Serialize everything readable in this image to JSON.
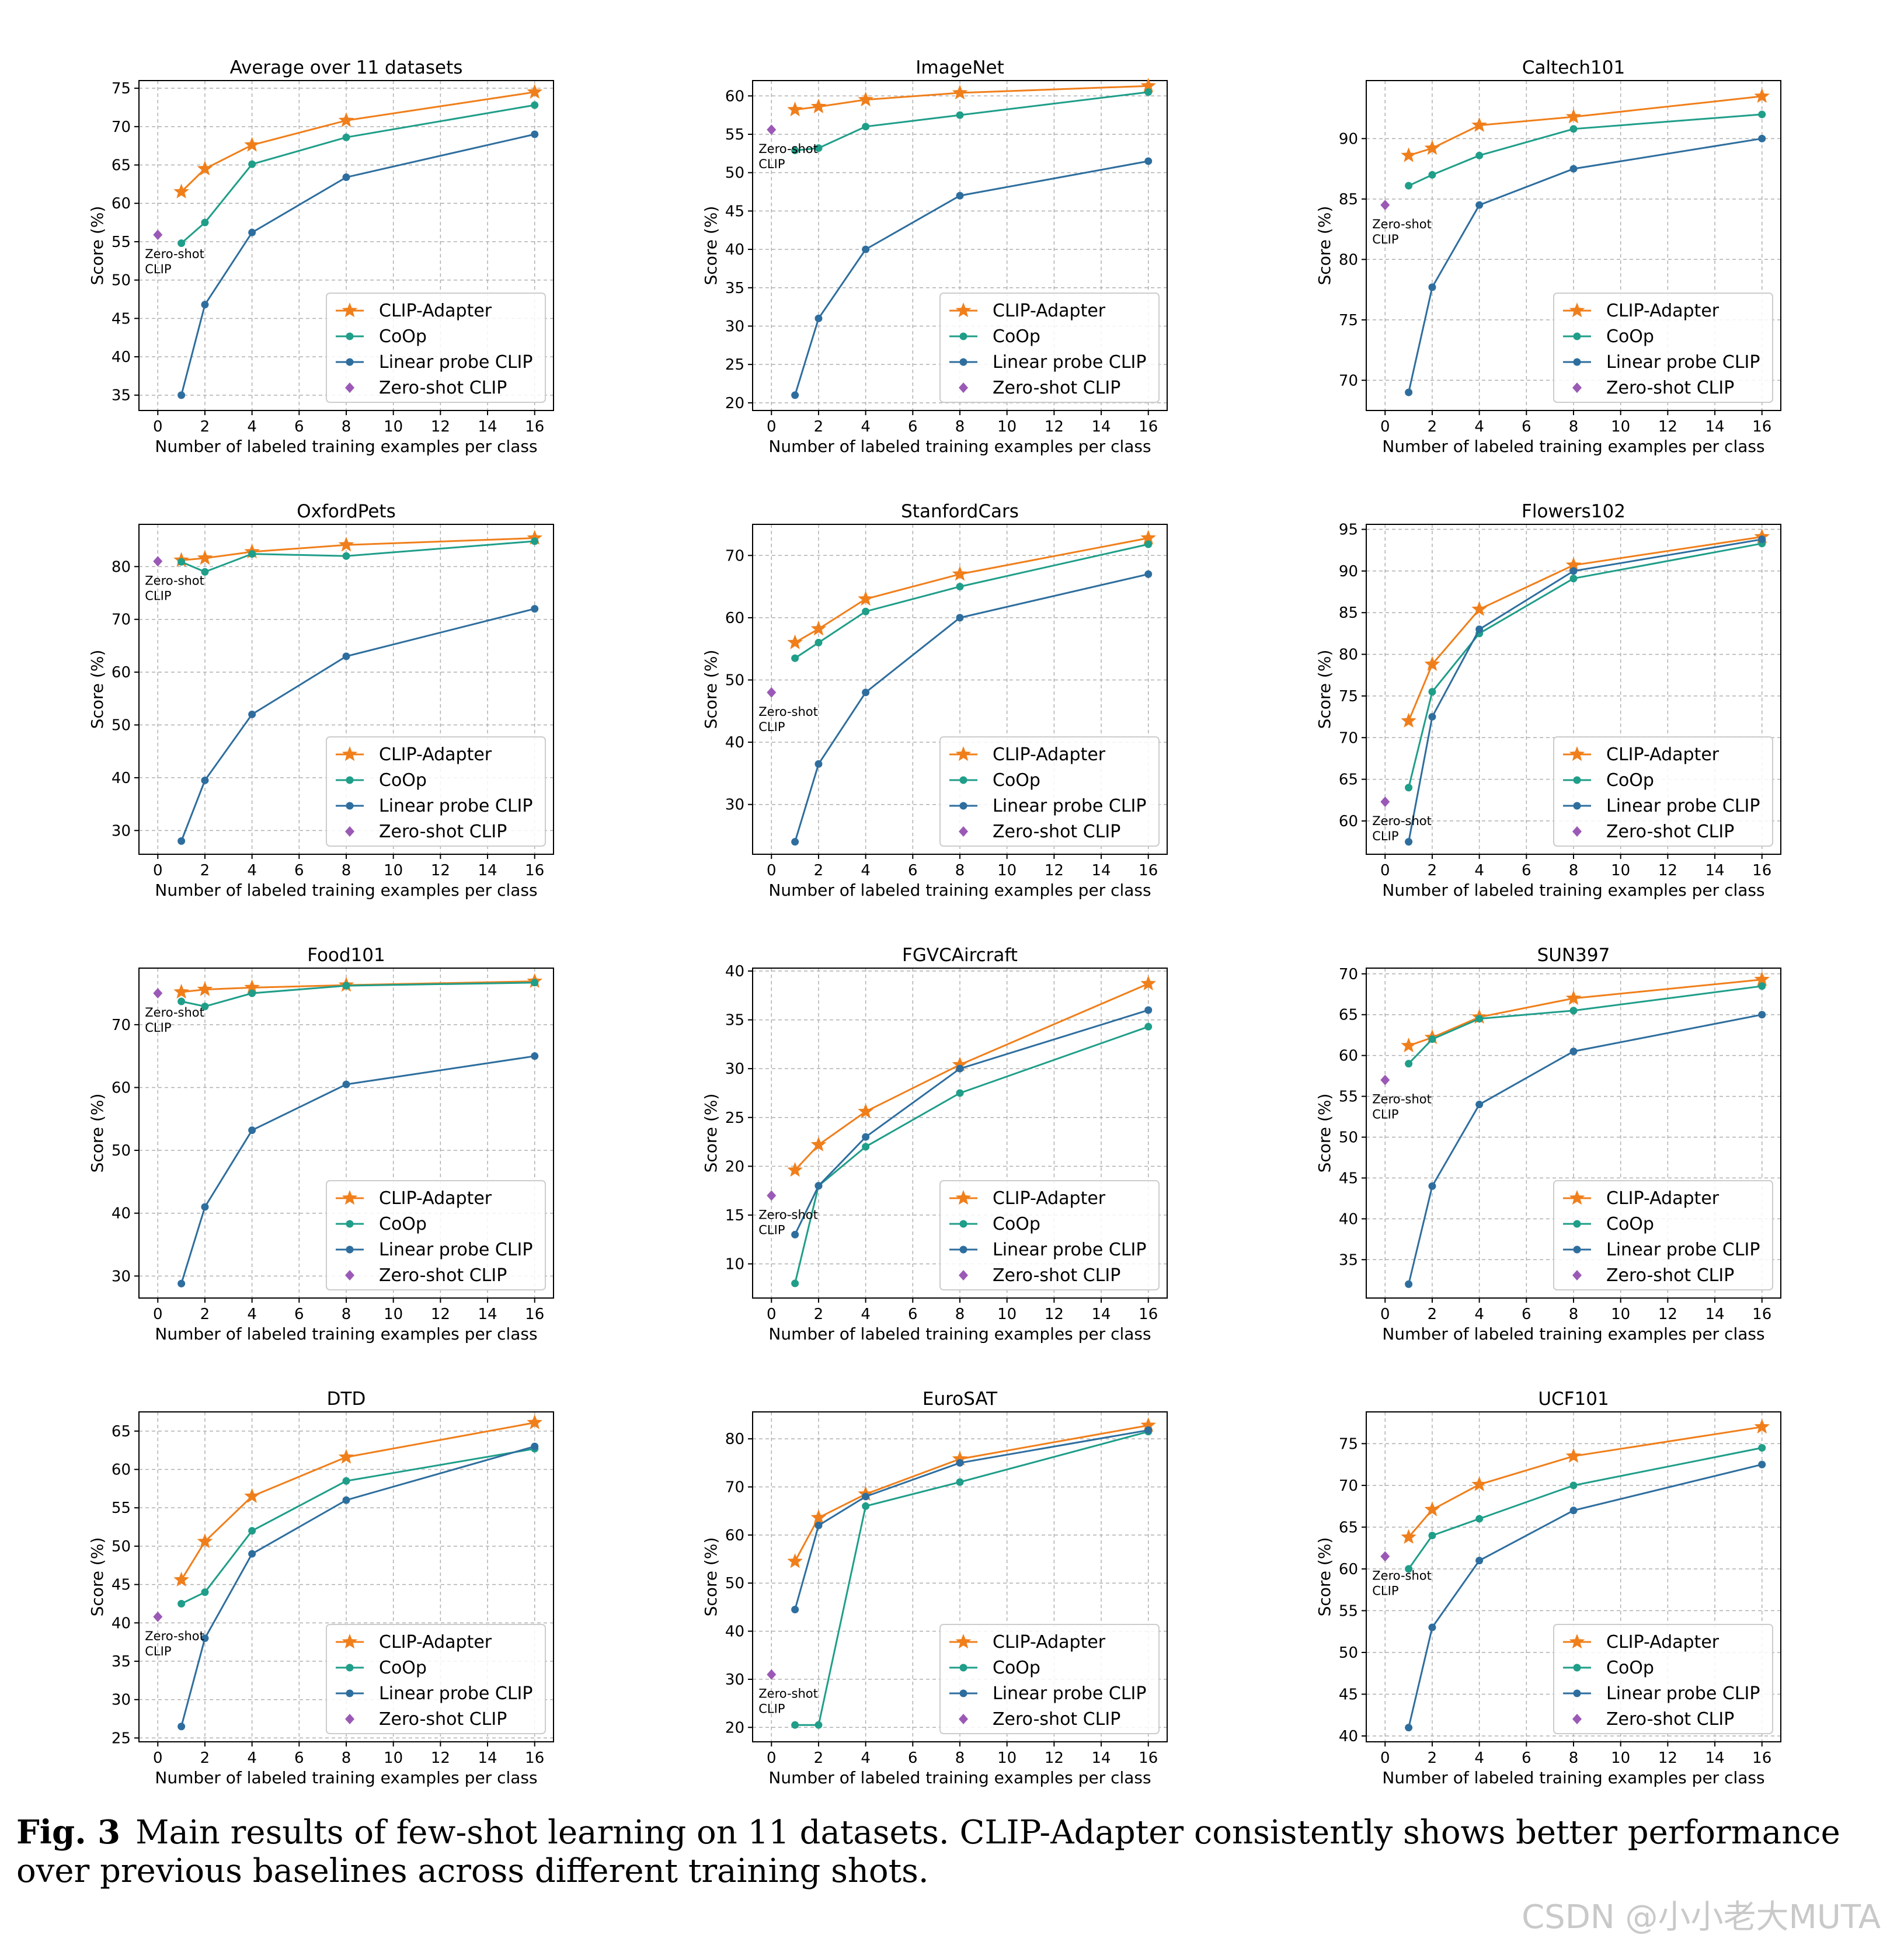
{
  "figure": {
    "caption_label": "Fig. 3",
    "caption_text": "Main results of few-shot learning on 11 datasets. CLIP-Adapter consistently shows better performance over previous baselines across different training shots.",
    "watermark": "CSDN @小小老大MUTA"
  },
  "colors": {
    "CLIP-Adapter": "#f07f1b",
    "CoOp": "#1f9e89",
    "Linear probe CLIP": "#2e6e9e",
    "Zero-shot CLIP": "#9b59b6"
  },
  "chart_data": [
    {
      "type": "line",
      "title": "Average over 11 datasets",
      "xlabel": "Number of labeled training examples per class",
      "ylabel": "Score (%)",
      "xlim": [
        -0.8,
        16.8
      ],
      "xticks": [
        0,
        2,
        4,
        6,
        8,
        10,
        12,
        14,
        16
      ],
      "ylim": [
        33,
        76
      ],
      "yticks": [
        35,
        40,
        45,
        50,
        55,
        60,
        65,
        70,
        75
      ],
      "grid": true,
      "legend": "lower-right",
      "zero_shot_label": [
        "Zero-shot",
        "CLIP"
      ],
      "series": [
        {
          "name": "CLIP-Adapter",
          "x": [
            1,
            2,
            4,
            8,
            16
          ],
          "y": [
            61.5,
            64.5,
            67.6,
            70.8,
            74.5
          ]
        },
        {
          "name": "CoOp",
          "x": [
            1,
            2,
            4,
            8,
            16
          ],
          "y": [
            54.8,
            57.5,
            65.1,
            68.6,
            72.8
          ]
        },
        {
          "name": "Linear probe CLIP",
          "x": [
            1,
            2,
            4,
            8,
            16
          ],
          "y": [
            35.0,
            46.8,
            56.2,
            63.4,
            69.0
          ]
        },
        {
          "name": "Zero-shot CLIP",
          "x": [
            0
          ],
          "y": [
            55.9
          ]
        }
      ]
    },
    {
      "type": "line",
      "title": "ImageNet",
      "xlabel": "Number of labeled training examples per class",
      "ylabel": "Score (%)",
      "xlim": [
        -0.8,
        16.8
      ],
      "xticks": [
        0,
        2,
        4,
        6,
        8,
        10,
        12,
        14,
        16
      ],
      "ylim": [
        19,
        62
      ],
      "yticks": [
        20,
        25,
        30,
        35,
        40,
        45,
        50,
        55,
        60
      ],
      "grid": true,
      "legend": "lower-right",
      "zero_shot_label": [
        "Zero-shot",
        "CLIP"
      ],
      "series": [
        {
          "name": "CLIP-Adapter",
          "x": [
            1,
            2,
            4,
            8,
            16
          ],
          "y": [
            58.2,
            58.6,
            59.5,
            60.4,
            61.3
          ]
        },
        {
          "name": "CoOp",
          "x": [
            1,
            2,
            4,
            8,
            16
          ],
          "y": [
            52.9,
            53.2,
            56.0,
            57.5,
            60.5
          ]
        },
        {
          "name": "Linear probe CLIP",
          "x": [
            1,
            2,
            4,
            8,
            16
          ],
          "y": [
            21.0,
            31.0,
            40.0,
            47.0,
            51.5
          ]
        },
        {
          "name": "Zero-shot CLIP",
          "x": [
            0
          ],
          "y": [
            55.6
          ]
        }
      ]
    },
    {
      "type": "line",
      "title": "Caltech101",
      "xlabel": "Number of labeled training examples per class",
      "ylabel": "Score (%)",
      "xlim": [
        -0.8,
        16.8
      ],
      "xticks": [
        0,
        2,
        4,
        6,
        8,
        10,
        12,
        14,
        16
      ],
      "ylim": [
        67.5,
        94.8
      ],
      "yticks": [
        70,
        75,
        80,
        85,
        90
      ],
      "grid": true,
      "legend": "lower-right",
      "zero_shot_label": [
        "Zero-shot",
        "CLIP"
      ],
      "series": [
        {
          "name": "CLIP-Adapter",
          "x": [
            1,
            2,
            4,
            8,
            16
          ],
          "y": [
            88.6,
            89.2,
            91.1,
            91.8,
            93.5
          ]
        },
        {
          "name": "CoOp",
          "x": [
            1,
            2,
            4,
            8,
            16
          ],
          "y": [
            86.1,
            87.0,
            88.6,
            90.8,
            92.0
          ]
        },
        {
          "name": "Linear probe CLIP",
          "x": [
            1,
            2,
            4,
            8,
            16
          ],
          "y": [
            69.0,
            77.7,
            84.5,
            87.5,
            90.0
          ]
        },
        {
          "name": "Zero-shot CLIP",
          "x": [
            0
          ],
          "y": [
            84.5
          ]
        }
      ]
    },
    {
      "type": "line",
      "title": "OxfordPets",
      "xlabel": "Number of labeled training examples per class",
      "ylabel": "Score (%)",
      "xlim": [
        -0.8,
        16.8
      ],
      "xticks": [
        0,
        2,
        4,
        6,
        8,
        10,
        12,
        14,
        16
      ],
      "ylim": [
        25.5,
        88
      ],
      "yticks": [
        30,
        40,
        50,
        60,
        70,
        80
      ],
      "grid": true,
      "legend": "lower-right",
      "zero_shot_label": [
        "Zero-shot",
        "CLIP"
      ],
      "series": [
        {
          "name": "CLIP-Adapter",
          "x": [
            1,
            2,
            4,
            8,
            16
          ],
          "y": [
            81.2,
            81.6,
            82.8,
            84.1,
            85.4
          ]
        },
        {
          "name": "CoOp",
          "x": [
            1,
            2,
            4,
            8,
            16
          ],
          "y": [
            80.9,
            79.0,
            82.4,
            82.0,
            84.8
          ]
        },
        {
          "name": "Linear probe CLIP",
          "x": [
            1,
            2,
            4,
            8,
            16
          ],
          "y": [
            28.0,
            39.5,
            52.0,
            63.0,
            72.0
          ]
        },
        {
          "name": "Zero-shot CLIP",
          "x": [
            0
          ],
          "y": [
            81.0
          ]
        }
      ]
    },
    {
      "type": "line",
      "title": "StanfordCars",
      "xlabel": "Number of labeled training examples per class",
      "ylabel": "Score (%)",
      "xlim": [
        -0.8,
        16.8
      ],
      "xticks": [
        0,
        2,
        4,
        6,
        8,
        10,
        12,
        14,
        16
      ],
      "ylim": [
        22,
        75
      ],
      "yticks": [
        30,
        40,
        50,
        60,
        70
      ],
      "grid": true,
      "legend": "lower-right",
      "zero_shot_label": [
        "Zero-shot",
        "CLIP"
      ],
      "series": [
        {
          "name": "CLIP-Adapter",
          "x": [
            1,
            2,
            4,
            8,
            16
          ],
          "y": [
            56.0,
            58.2,
            63.0,
            67.0,
            72.8
          ]
        },
        {
          "name": "CoOp",
          "x": [
            1,
            2,
            4,
            8,
            16
          ],
          "y": [
            53.5,
            56.0,
            61.0,
            65.0,
            71.8
          ]
        },
        {
          "name": "Linear probe CLIP",
          "x": [
            1,
            2,
            4,
            8,
            16
          ],
          "y": [
            24.0,
            36.5,
            48.0,
            60.0,
            67.0
          ]
        },
        {
          "name": "Zero-shot CLIP",
          "x": [
            0
          ],
          "y": [
            48.0
          ]
        }
      ]
    },
    {
      "type": "line",
      "title": "Flowers102",
      "xlabel": "Number of labeled training examples per class",
      "ylabel": "Score (%)",
      "xlim": [
        -0.8,
        16.8
      ],
      "xticks": [
        0,
        2,
        4,
        6,
        8,
        10,
        12,
        14,
        16
      ],
      "ylim": [
        56,
        95.6
      ],
      "yticks": [
        60,
        65,
        70,
        75,
        80,
        85,
        90,
        95
      ],
      "grid": true,
      "legend": "lower-right",
      "zero_shot_label": [
        "Zero-shot",
        "CLIP"
      ],
      "series": [
        {
          "name": "CLIP-Adapter",
          "x": [
            1,
            2,
            4,
            8,
            16
          ],
          "y": [
            72.0,
            78.8,
            85.4,
            90.7,
            94.1
          ]
        },
        {
          "name": "CoOp",
          "x": [
            1,
            2,
            4,
            8,
            16
          ],
          "y": [
            64.0,
            75.5,
            82.5,
            89.1,
            93.3
          ]
        },
        {
          "name": "Linear probe CLIP",
          "x": [
            1,
            2,
            4,
            8,
            16
          ],
          "y": [
            57.5,
            72.5,
            83.0,
            90.0,
            93.8
          ]
        },
        {
          "name": "Zero-shot CLIP",
          "x": [
            0
          ],
          "y": [
            62.3
          ]
        }
      ]
    },
    {
      "type": "line",
      "title": "Food101",
      "xlabel": "Number of labeled training examples per class",
      "ylabel": "Score (%)",
      "xlim": [
        -0.8,
        16.8
      ],
      "xticks": [
        0,
        2,
        4,
        6,
        8,
        10,
        12,
        14,
        16
      ],
      "ylim": [
        26.5,
        79
      ],
      "yticks": [
        30,
        40,
        50,
        60,
        70
      ],
      "grid": true,
      "legend": "lower-right",
      "zero_shot_label": [
        "Zero-shot",
        "CLIP"
      ],
      "series": [
        {
          "name": "CLIP-Adapter",
          "x": [
            1,
            2,
            4,
            8,
            16
          ],
          "y": [
            75.2,
            75.6,
            75.9,
            76.3,
            76.9
          ]
        },
        {
          "name": "CoOp",
          "x": [
            1,
            2,
            4,
            8,
            16
          ],
          "y": [
            73.7,
            72.9,
            75.0,
            76.2,
            76.7
          ]
        },
        {
          "name": "Linear probe CLIP",
          "x": [
            1,
            2,
            4,
            8,
            16
          ],
          "y": [
            28.8,
            41.0,
            53.2,
            60.5,
            65.0
          ]
        },
        {
          "name": "Zero-shot CLIP",
          "x": [
            0
          ],
          "y": [
            75.0
          ]
        }
      ]
    },
    {
      "type": "line",
      "title": "FGVCAircraft",
      "xlabel": "Number of labeled training examples per class",
      "ylabel": "Score (%)",
      "xlim": [
        -0.8,
        16.8
      ],
      "xticks": [
        0,
        2,
        4,
        6,
        8,
        10,
        12,
        14,
        16
      ],
      "ylim": [
        6.5,
        40.3
      ],
      "yticks": [
        10,
        15,
        20,
        25,
        30,
        35,
        40
      ],
      "grid": true,
      "legend": "lower-right",
      "zero_shot_label": [
        "Zero-shot",
        "CLIP"
      ],
      "series": [
        {
          "name": "CLIP-Adapter",
          "x": [
            1,
            2,
            4,
            8,
            16
          ],
          "y": [
            19.6,
            22.2,
            25.6,
            30.4,
            38.7
          ]
        },
        {
          "name": "CoOp",
          "x": [
            1,
            2,
            4,
            8,
            16
          ],
          "y": [
            8.0,
            18.0,
            22.0,
            27.5,
            34.3
          ]
        },
        {
          "name": "Linear probe CLIP",
          "x": [
            1,
            2,
            4,
            8,
            16
          ],
          "y": [
            13.0,
            18.0,
            23.0,
            30.0,
            36.0
          ]
        },
        {
          "name": "Zero-shot CLIP",
          "x": [
            0
          ],
          "y": [
            17.0
          ]
        }
      ]
    },
    {
      "type": "line",
      "title": "SUN397",
      "xlabel": "Number of labeled training examples per class",
      "ylabel": "Score (%)",
      "xlim": [
        -0.8,
        16.8
      ],
      "xticks": [
        0,
        2,
        4,
        6,
        8,
        10,
        12,
        14,
        16
      ],
      "ylim": [
        30.3,
        70.7
      ],
      "yticks": [
        35,
        40,
        45,
        50,
        55,
        60,
        65,
        70
      ],
      "grid": true,
      "legend": "lower-right",
      "zero_shot_label": [
        "Zero-shot",
        "CLIP"
      ],
      "series": [
        {
          "name": "CLIP-Adapter",
          "x": [
            1,
            2,
            4,
            8,
            16
          ],
          "y": [
            61.2,
            62.2,
            64.7,
            67.0,
            69.3
          ]
        },
        {
          "name": "CoOp",
          "x": [
            1,
            2,
            4,
            8,
            16
          ],
          "y": [
            59.0,
            62.0,
            64.5,
            65.5,
            68.5
          ]
        },
        {
          "name": "Linear probe CLIP",
          "x": [
            1,
            2,
            4,
            8,
            16
          ],
          "y": [
            32.0,
            44.0,
            54.0,
            60.5,
            65.0
          ]
        },
        {
          "name": "Zero-shot CLIP",
          "x": [
            0
          ],
          "y": [
            57.0
          ]
        }
      ]
    },
    {
      "type": "line",
      "title": "DTD",
      "xlabel": "Number of labeled training examples per class",
      "ylabel": "Score (%)",
      "xlim": [
        -0.8,
        16.8
      ],
      "xticks": [
        0,
        2,
        4,
        6,
        8,
        10,
        12,
        14,
        16
      ],
      "ylim": [
        24.5,
        67.5
      ],
      "yticks": [
        25,
        30,
        35,
        40,
        45,
        50,
        55,
        60,
        65
      ],
      "grid": true,
      "legend": "lower-right",
      "zero_shot_label": [
        "Zero-shot",
        "CLIP"
      ],
      "series": [
        {
          "name": "CLIP-Adapter",
          "x": [
            1,
            2,
            4,
            8,
            16
          ],
          "y": [
            45.6,
            50.6,
            56.5,
            61.6,
            66.1
          ]
        },
        {
          "name": "CoOp",
          "x": [
            1,
            2,
            4,
            8,
            16
          ],
          "y": [
            42.5,
            44.0,
            52.0,
            58.5,
            62.7
          ]
        },
        {
          "name": "Linear probe CLIP",
          "x": [
            1,
            2,
            4,
            8,
            16
          ],
          "y": [
            26.5,
            38.0,
            49.0,
            56.0,
            63.0
          ]
        },
        {
          "name": "Zero-shot CLIP",
          "x": [
            0
          ],
          "y": [
            40.8
          ]
        }
      ]
    },
    {
      "type": "line",
      "title": "EuroSAT",
      "xlabel": "Number of labeled training examples per class",
      "ylabel": "Score (%)",
      "xlim": [
        -0.8,
        16.8
      ],
      "xticks": [
        0,
        2,
        4,
        6,
        8,
        10,
        12,
        14,
        16
      ],
      "ylim": [
        17,
        85.6
      ],
      "yticks": [
        20,
        30,
        40,
        50,
        60,
        70,
        80
      ],
      "grid": true,
      "legend": "lower-right",
      "zero_shot_label": [
        "Zero-shot",
        "CLIP"
      ],
      "series": [
        {
          "name": "CLIP-Adapter",
          "x": [
            1,
            2,
            4,
            8,
            16
          ],
          "y": [
            54.5,
            63.6,
            68.5,
            75.8,
            82.8
          ]
        },
        {
          "name": "CoOp",
          "x": [
            1,
            2,
            4,
            8,
            16
          ],
          "y": [
            20.5,
            20.5,
            66.0,
            71.0,
            81.5
          ]
        },
        {
          "name": "Linear probe CLIP",
          "x": [
            1,
            2,
            4,
            8,
            16
          ],
          "y": [
            44.5,
            62.0,
            68.0,
            75.0,
            81.8
          ]
        },
        {
          "name": "Zero-shot CLIP",
          "x": [
            0
          ],
          "y": [
            31.0
          ]
        }
      ]
    },
    {
      "type": "line",
      "title": "UCF101",
      "xlabel": "Number of labeled training examples per class",
      "ylabel": "Score (%)",
      "xlim": [
        -0.8,
        16.8
      ],
      "xticks": [
        0,
        2,
        4,
        6,
        8,
        10,
        12,
        14,
        16
      ],
      "ylim": [
        39.3,
        78.8
      ],
      "yticks": [
        40,
        45,
        50,
        55,
        60,
        65,
        70,
        75
      ],
      "grid": true,
      "legend": "lower-right",
      "zero_shot_label": [
        "Zero-shot",
        "CLIP"
      ],
      "series": [
        {
          "name": "CLIP-Adapter",
          "x": [
            1,
            2,
            4,
            8,
            16
          ],
          "y": [
            63.8,
            67.1,
            70.1,
            73.5,
            77.0
          ]
        },
        {
          "name": "CoOp",
          "x": [
            1,
            2,
            4,
            8,
            16
          ],
          "y": [
            60.0,
            64.0,
            66.0,
            70.0,
            74.5
          ]
        },
        {
          "name": "Linear probe CLIP",
          "x": [
            1,
            2,
            4,
            8,
            16
          ],
          "y": [
            41.0,
            53.0,
            61.0,
            67.0,
            72.5
          ]
        },
        {
          "name": "Zero-shot CLIP",
          "x": [
            0
          ],
          "y": [
            61.5
          ]
        }
      ]
    }
  ]
}
